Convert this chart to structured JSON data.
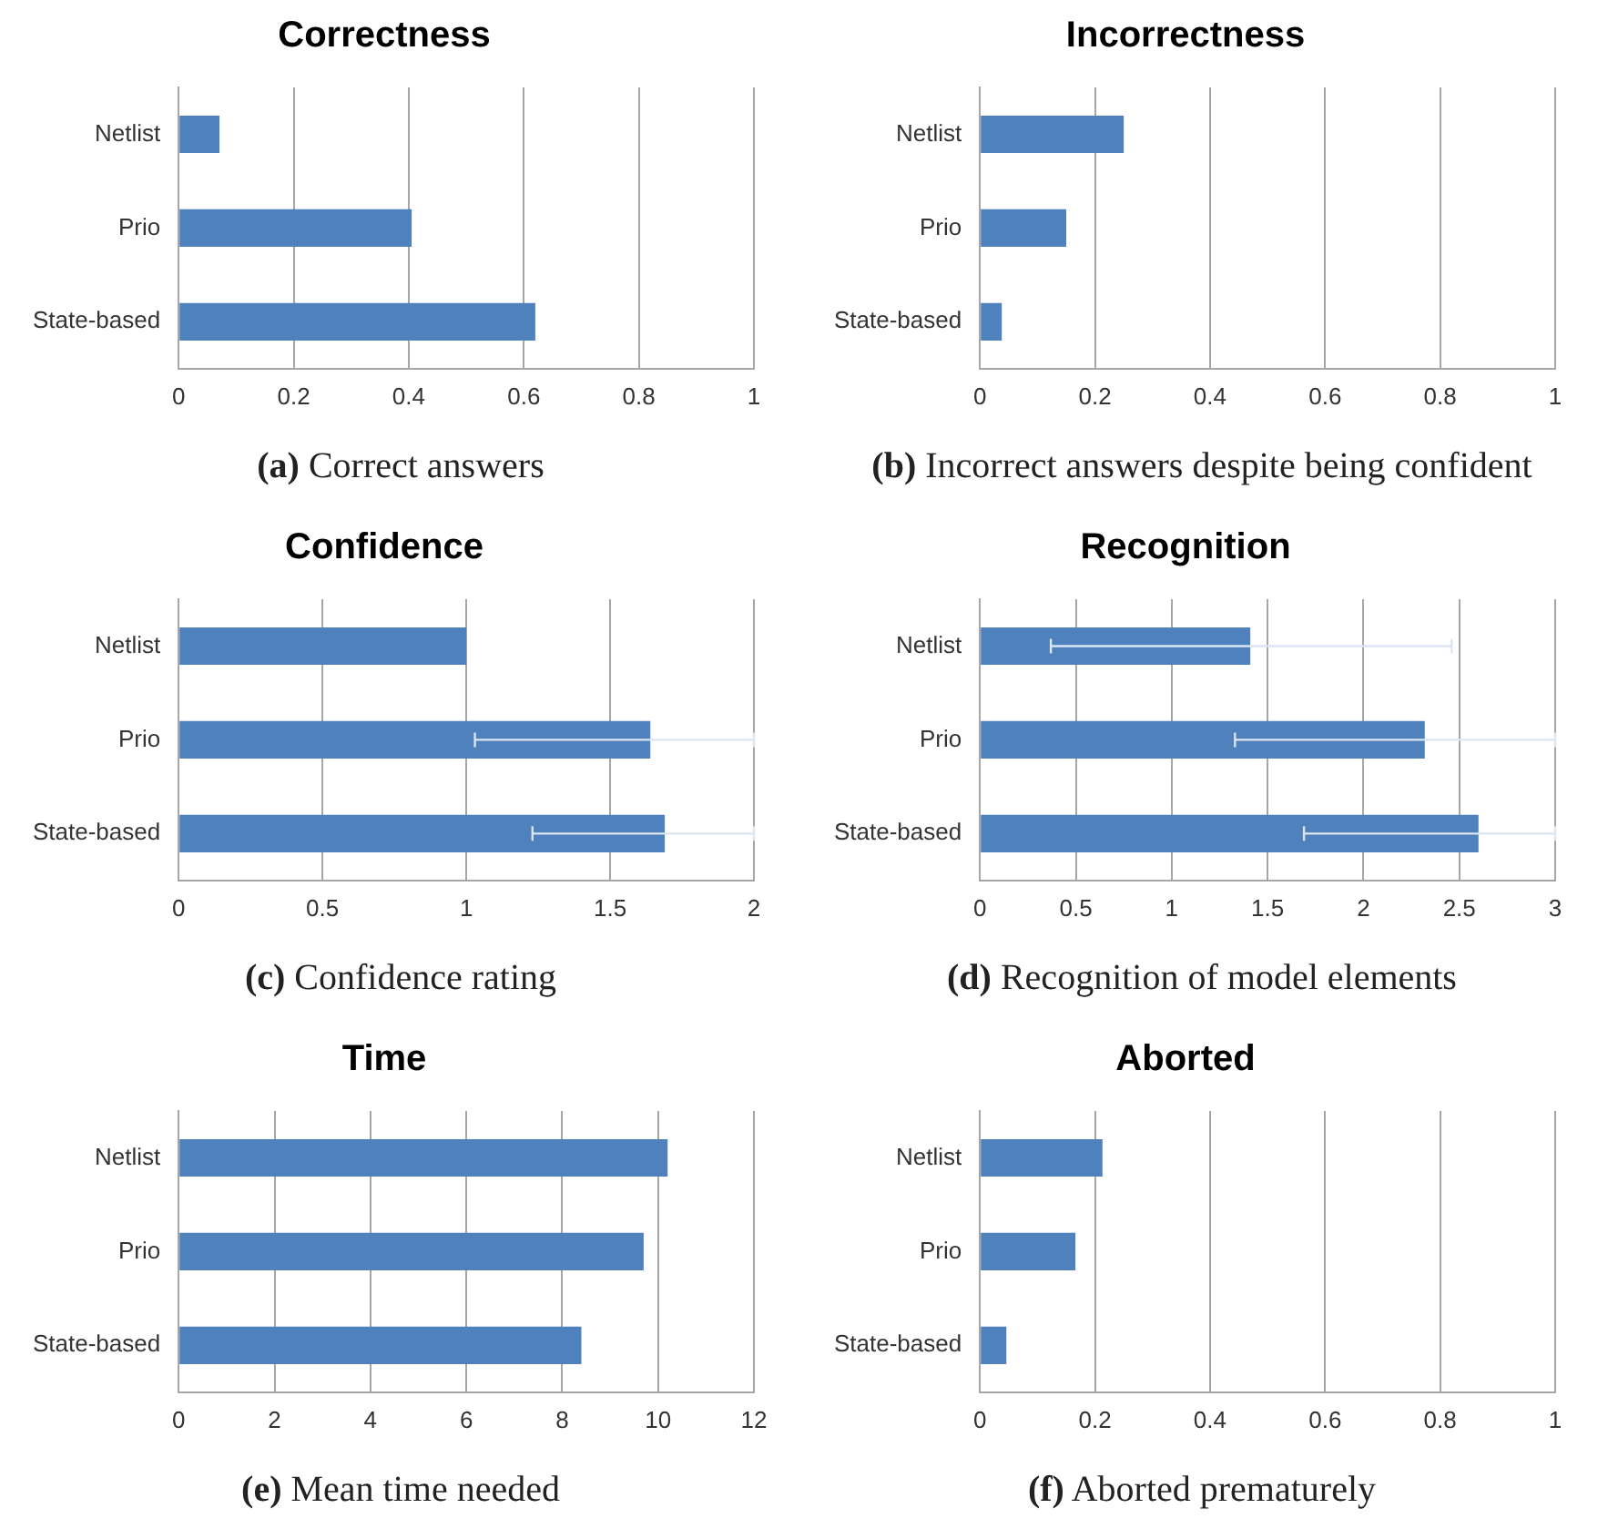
{
  "chart_data": [
    {
      "type": "bar",
      "orientation": "horizontal",
      "title": "Correctness",
      "categories": [
        "Netlist",
        "Prio",
        "State-based"
      ],
      "values": [
        0.071,
        0.405,
        0.62
      ],
      "color": "#4f81bd",
      "xlim": [
        0,
        1
      ],
      "xticks": [
        0,
        0.2,
        0.4,
        0.6,
        0.8,
        1
      ],
      "grid": "x",
      "annotations": [
        "(a) Correct answers"
      ]
    },
    {
      "type": "bar",
      "orientation": "horizontal",
      "title": "Incorrectness",
      "categories": [
        "Netlist",
        "Prio",
        "State-based"
      ],
      "values": [
        0.25,
        0.15,
        0.038
      ],
      "color": "#4f81bd",
      "xlim": [
        0,
        1
      ],
      "xticks": [
        0,
        0.2,
        0.4,
        0.6,
        0.8,
        1
      ],
      "grid": "x",
      "annotations": [
        "(b) Incorrect answers despite being confident"
      ]
    },
    {
      "type": "bar",
      "orientation": "horizontal",
      "title": "Confidence",
      "categories": [
        "Netlist",
        "Prio",
        "State-based"
      ],
      "values": [
        1.0,
        1.64,
        1.69
      ],
      "errors": [
        null,
        [
          1.03,
          2
        ],
        [
          1.23,
          2
        ]
      ],
      "color": "#4f81bd",
      "xlim": [
        0,
        2
      ],
      "xticks": [
        0,
        0.5,
        1,
        1.5,
        2
      ],
      "grid": "x",
      "annotations": [
        "(c) Confidence rating"
      ]
    },
    {
      "type": "bar",
      "orientation": "horizontal",
      "title": "Recognition",
      "categories": [
        "Netlist",
        "Prio",
        "State-based"
      ],
      "values": [
        1.41,
        2.32,
        2.6
      ],
      "errors": [
        [
          0.37,
          2.46
        ],
        [
          1.33,
          3
        ],
        [
          1.69,
          3
        ]
      ],
      "color": "#4f81bd",
      "xlim": [
        0,
        3
      ],
      "xticks": [
        0,
        0.5,
        1,
        1.5,
        2,
        2.5,
        3
      ],
      "grid": "x",
      "annotations": [
        "(d) Recognition of model elements"
      ]
    },
    {
      "type": "bar",
      "orientation": "horizontal",
      "title": "Time",
      "categories": [
        "Netlist",
        "Prio",
        "State-based"
      ],
      "values": [
        10.2,
        9.7,
        8.4
      ],
      "color": "#4f81bd",
      "xlim": [
        0,
        12
      ],
      "xticks": [
        0,
        2,
        4,
        6,
        8,
        10,
        12
      ],
      "grid": "x",
      "annotations": [
        "(e) Mean time needed"
      ]
    },
    {
      "type": "bar",
      "orientation": "horizontal",
      "title": "Aborted",
      "categories": [
        "Netlist",
        "Prio",
        "State-based"
      ],
      "values": [
        0.213,
        0.166,
        0.046
      ],
      "color": "#4f81bd",
      "xlim": [
        0,
        1
      ],
      "xticks": [
        0,
        0.2,
        0.4,
        0.6,
        0.8,
        1
      ],
      "grid": "x",
      "annotations": [
        "(f) Aborted prematurely"
      ]
    }
  ]
}
